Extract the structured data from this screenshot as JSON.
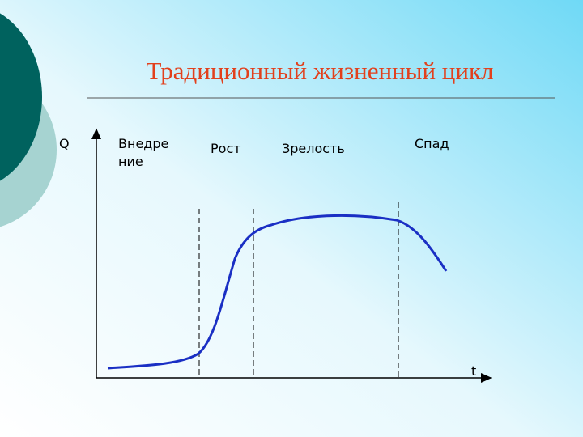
{
  "title": "Традиционный жизненный цикл",
  "axes": {
    "y_label": "Q",
    "x_label": "t"
  },
  "stages": [
    [
      "Внедре",
      "ние"
    ],
    [
      "Рост"
    ],
    [
      "Зрелость"
    ],
    [
      "Спад"
    ]
  ]
}
